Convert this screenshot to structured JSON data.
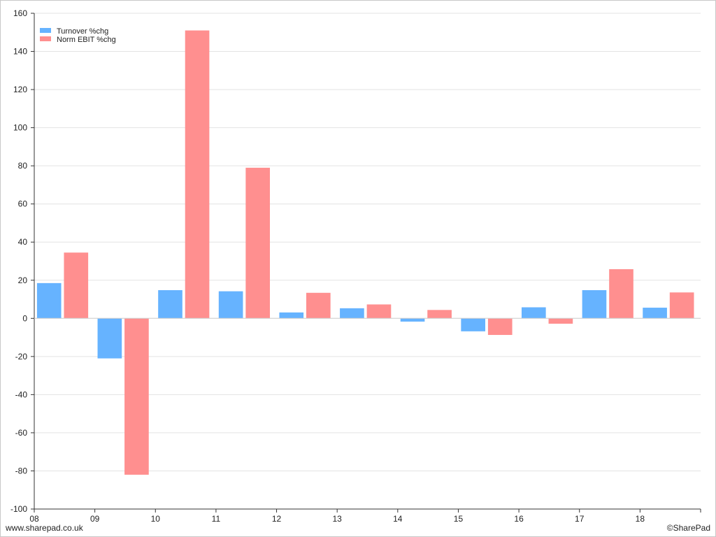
{
  "chart_data": {
    "type": "bar",
    "categories": [
      "08",
      "09",
      "10",
      "11",
      "12",
      "13",
      "14",
      "15",
      "16",
      "17",
      "18"
    ],
    "series": [
      {
        "name": "Turnover %chg",
        "color": "#66b3ff",
        "values": [
          18.5,
          -21,
          14.8,
          14.2,
          3.1,
          5.3,
          -1.7,
          -6.8,
          5.8,
          14.8,
          5.6
        ]
      },
      {
        "name": "Norm EBIT %chg",
        "color": "#ff8f8f",
        "values": [
          34.5,
          -82,
          151,
          79,
          13.4,
          7.3,
          4.4,
          -8.7,
          -2.8,
          25.8,
          13.6
        ]
      }
    ],
    "ylim": [
      -100,
      160
    ],
    "yticks": [
      160,
      140,
      120,
      100,
      80,
      60,
      40,
      20,
      0,
      -20,
      -40,
      -60,
      -80,
      -100
    ],
    "grid": true,
    "legend": "top-left",
    "title": "",
    "xlabel": "",
    "ylabel": ""
  },
  "footer": {
    "source": "www.sharepad.co.uk",
    "credit": "©SharePad"
  }
}
